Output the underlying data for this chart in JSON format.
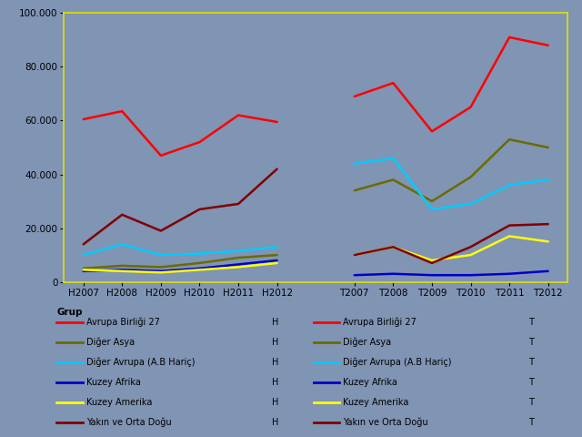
{
  "background_color": "#8094b4",
  "plot_bg_color": "#8094b4",
  "border_color": "#e0e000",
  "x_labels_H": [
    "H2007",
    "H2008",
    "H2009",
    "H2010",
    "H2011",
    "H2012"
  ],
  "x_labels_T": [
    "T2007",
    "T2008",
    "T2009",
    "T2010",
    "T2011",
    "T2012"
  ],
  "series": [
    {
      "label": "Avrupa Birliği 27",
      "color": "#ff0000",
      "H": [
        60500,
        63500,
        47000,
        52000,
        62000,
        59500
      ],
      "T": [
        69000,
        74000,
        56000,
        65000,
        91000,
        88000
      ]
    },
    {
      "label": "Diğer Asya",
      "color": "#6b6b00",
      "H": [
        5000,
        6000,
        5500,
        7000,
        9000,
        10000
      ],
      "T": [
        34000,
        38000,
        30000,
        39000,
        53000,
        50000
      ]
    },
    {
      "label": "Diğer Avrupa (A.B Hariç)",
      "color": "#00ccff",
      "H": [
        10000,
        14000,
        10000,
        10500,
        11500,
        13000
      ],
      "T": [
        44000,
        46000,
        27000,
        29000,
        36000,
        38000
      ]
    },
    {
      "label": "Kuzey Afrika",
      "color": "#0000cc",
      "H": [
        4000,
        4500,
        4000,
        5000,
        6500,
        8000
      ],
      "T": [
        2500,
        3000,
        2500,
        2500,
        3000,
        4000
      ]
    },
    {
      "label": "Kuzey Amerika",
      "color": "#ffff00",
      "H": [
        4500,
        4000,
        3500,
        4500,
        5500,
        7000
      ],
      "T": [
        10000,
        13000,
        8000,
        10000,
        17000,
        15000
      ]
    },
    {
      "label": "Yakın ve Orta Doğu",
      "color": "#800000",
      "H": [
        14000,
        25000,
        19000,
        27000,
        29000,
        42000
      ],
      "T": [
        10000,
        13000,
        7000,
        13000,
        21000,
        21500
      ]
    }
  ],
  "ylim": [
    0,
    100000
  ],
  "yticks": [
    0,
    20000,
    40000,
    60000,
    80000,
    100000
  ],
  "legend_header": "Grup",
  "figsize": [
    6.4,
    4.8
  ],
  "dpi": 100
}
